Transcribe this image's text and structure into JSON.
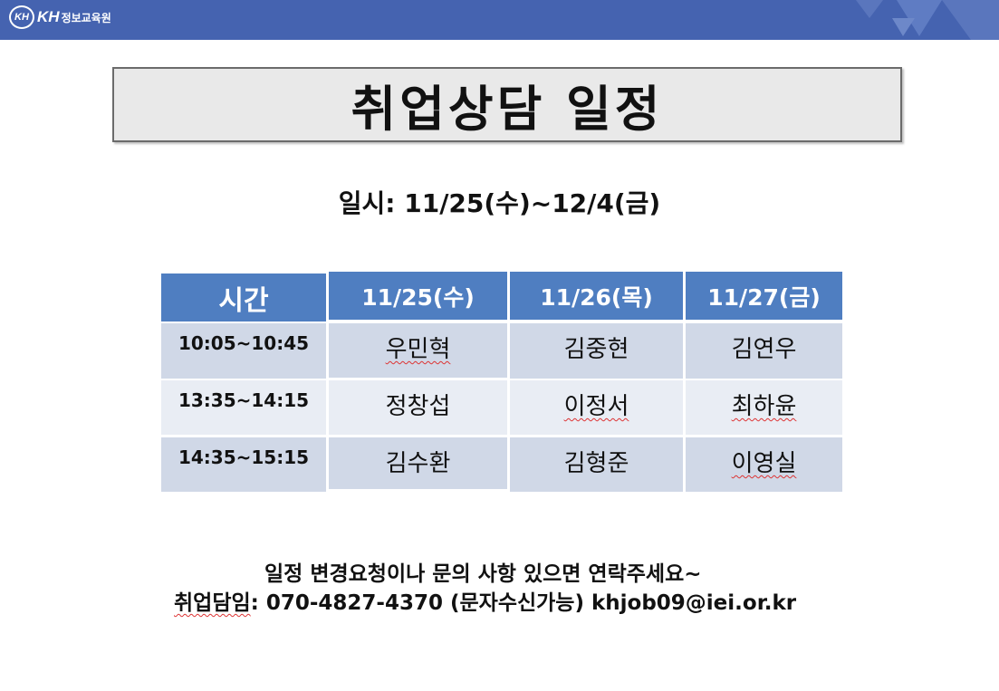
{
  "banner": {
    "logo_mark": "KH",
    "logo_kh": "KH",
    "logo_name": "정보교육원"
  },
  "title": "취업상담 일정",
  "date_line": "일시: 11/25(수)~12/4(금)",
  "table": {
    "headers": [
      "시간",
      "11/25(수)",
      "11/26(목)",
      "11/27(금)"
    ],
    "rows": [
      {
        "time": "10:05~10:45",
        "names": [
          "우민혁",
          "김중현",
          "김연우"
        ]
      },
      {
        "time": "13:35~14:15",
        "names": [
          "정창섭",
          "이정서",
          "최하윤"
        ]
      },
      {
        "time": "14:35~15:15",
        "names": [
          "김수환",
          "김형준",
          "이영실"
        ]
      }
    ]
  },
  "footer": {
    "line1": "일정 변경요청이나 문의 사항 있으면 연락주세요~",
    "line2_label": "취업담임",
    "line2_rest": ": 070-4827-4370 (문자수신가능)  khjob09@iei.or.kr"
  },
  "colors": {
    "banner": "#4563b0",
    "header": "#4f7ec1",
    "row_a": "#d0d8e7",
    "row_b": "#e9edf4"
  }
}
